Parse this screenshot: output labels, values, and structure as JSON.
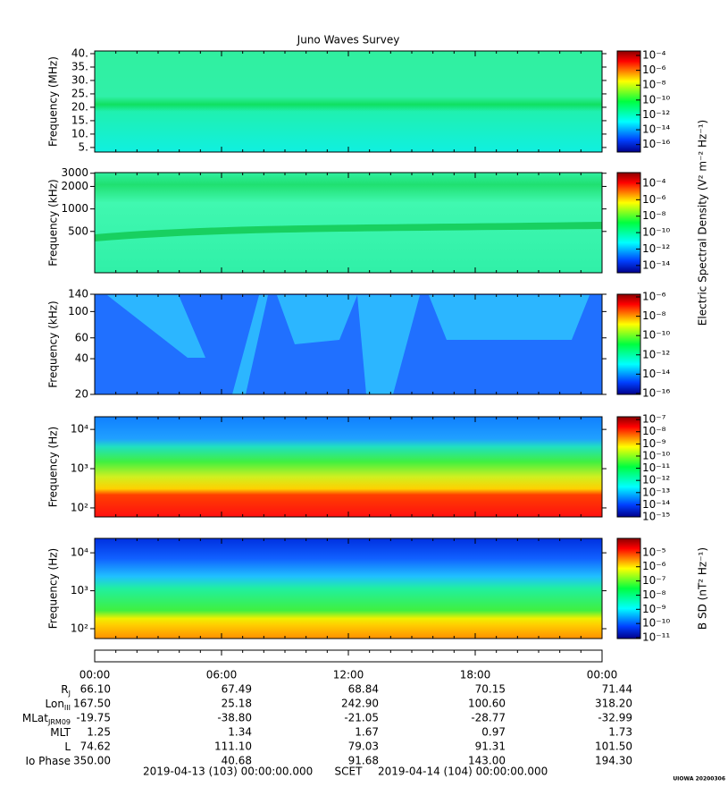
{
  "title": "Juno Waves Survey",
  "chart_data": [
    {
      "type": "spectrogram",
      "ylabel": "Frequency (MHz)",
      "yscale": "linear",
      "ylim": [
        3.3,
        41
      ],
      "yticks": [
        {
          "value": 5,
          "label": "5."
        },
        {
          "value": 10,
          "label": "10."
        },
        {
          "value": 15,
          "label": "15."
        },
        {
          "value": 20,
          "label": "20."
        },
        {
          "value": 25,
          "label": "25."
        },
        {
          "value": 30,
          "label": "30."
        },
        {
          "value": 35,
          "label": "35."
        },
        {
          "value": 40,
          "label": "40."
        }
      ],
      "colorbar": {
        "scale": "log",
        "clim": [
          1e-17,
          0.0004
        ],
        "ticks": [
          {
            "value": 0.0001,
            "label": "10⁻⁴"
          },
          {
            "value": 1e-06,
            "label": "10⁻⁶"
          },
          {
            "value": 1e-08,
            "label": "10⁻⁸"
          },
          {
            "value": 1e-10,
            "label": "10⁻¹⁰"
          },
          {
            "value": 1e-12,
            "label": "10⁻¹²"
          },
          {
            "value": 1e-14,
            "label": "10⁻¹⁴"
          },
          {
            "value": 1e-16,
            "label": "10⁻¹⁶"
          }
        ]
      }
    },
    {
      "type": "spectrogram",
      "ylabel": "Frequency (kHz)",
      "yscale": "log",
      "ylim": [
        140,
        3060
      ],
      "yticks": [
        500,
        1000,
        2000,
        3000
      ],
      "colorbar": {
        "scale": "log",
        "clim": [
          1.3e-15,
          0.002
        ],
        "ticks": [
          {
            "value": 0.0001,
            "label": "10⁻⁴"
          },
          {
            "value": 1e-06,
            "label": "10⁻⁶"
          },
          {
            "value": 1e-08,
            "label": "10⁻⁸"
          },
          {
            "value": 1e-10,
            "label": "10⁻¹⁰"
          },
          {
            "value": 1e-12,
            "label": "10⁻¹²"
          },
          {
            "value": 1e-14,
            "label": "10⁻¹⁴"
          }
        ]
      }
    },
    {
      "type": "spectrogram",
      "ylabel": "Frequency (kHz)",
      "yscale": "log",
      "ylim": [
        20,
        140
      ],
      "yticks": [
        20,
        40,
        60,
        100,
        140
      ],
      "colorbar": {
        "scale": "log",
        "clim": [
          8e-17,
          1.9e-06
        ],
        "ticks": [
          {
            "value": 1e-06,
            "label": "10⁻⁶"
          },
          {
            "value": 1e-08,
            "label": "10⁻⁸"
          },
          {
            "value": 1e-10,
            "label": "10⁻¹⁰"
          },
          {
            "value": 1e-12,
            "label": "10⁻¹²"
          },
          {
            "value": 1e-14,
            "label": "10⁻¹⁴"
          },
          {
            "value": 1e-16,
            "label": "10⁻¹⁶"
          }
        ]
      }
    },
    {
      "type": "spectrogram",
      "ylabel": "Frequency (Hz)",
      "yscale": "log",
      "ylim": [
        59,
        21000
      ],
      "yticks": [
        {
          "value": 100,
          "label": "10²"
        },
        {
          "value": 1000,
          "label": "10³"
        },
        {
          "value": 10000,
          "label": "10⁴"
        }
      ],
      "colorbar": {
        "scale": "log",
        "clim": [
          1e-15,
          1.7e-07
        ],
        "ticks": [
          {
            "value": 1e-07,
            "label": "10⁻⁷"
          },
          {
            "value": 1e-08,
            "label": "10⁻⁸"
          },
          {
            "value": 1e-09,
            "label": "10⁻⁹"
          },
          {
            "value": 1e-10,
            "label": "10⁻¹⁰"
          },
          {
            "value": 1e-11,
            "label": "10⁻¹¹"
          },
          {
            "value": 1e-12,
            "label": "10⁻¹²"
          },
          {
            "value": 1e-13,
            "label": "10⁻¹³"
          },
          {
            "value": 1e-14,
            "label": "10⁻¹⁴"
          },
          {
            "value": 1e-15,
            "label": "10⁻¹⁵"
          }
        ]
      }
    },
    {
      "type": "spectrogram",
      "ylabel": "Frequency (Hz)",
      "yscale": "log",
      "ylim": [
        55,
        24000
      ],
      "yticks": [
        {
          "value": 100,
          "label": "10²"
        },
        {
          "value": 1000,
          "label": "10³"
        },
        {
          "value": 10000,
          "label": "10⁴"
        }
      ],
      "colorbar": {
        "scale": "log",
        "clim": [
          8.7e-12,
          0.0001
        ],
        "label": "B SD (nT² Hz⁻¹)",
        "ticks": [
          {
            "value": 1e-05,
            "label": "10⁻⁵"
          },
          {
            "value": 1e-06,
            "label": "10⁻⁶"
          },
          {
            "value": 1e-07,
            "label": "10⁻⁷"
          },
          {
            "value": 1e-08,
            "label": "10⁻⁸"
          },
          {
            "value": 1e-09,
            "label": "10⁻⁹"
          },
          {
            "value": 1e-10,
            "label": "10⁻¹⁰"
          },
          {
            "value": 1e-11,
            "label": "10⁻¹¹"
          }
        ]
      }
    }
  ],
  "electric_colorbar_label": "Electric Spectral Density (V² m⁻² Hz⁻¹)",
  "time_ticks": [
    "00:00",
    "06:00",
    "12:00",
    "18:00",
    "00:00"
  ],
  "ephemeris": [
    {
      "label": "R",
      "sub": "J",
      "values": [
        "66.10",
        "67.49",
        "68.84",
        "70.15",
        "71.44"
      ]
    },
    {
      "label": "Lon",
      "sub": "III",
      "values": [
        "167.50",
        "25.18",
        "242.90",
        "100.60",
        "318.20"
      ]
    },
    {
      "label": "MLat",
      "sub": "JRM09",
      "values": [
        "-19.75",
        "-38.80",
        "-21.05",
        "-28.77",
        "-32.99"
      ]
    },
    {
      "label": "MLT",
      "values": [
        "1.25",
        "1.34",
        "1.67",
        "0.97",
        "1.73"
      ]
    },
    {
      "label": "L",
      "values": [
        "74.62",
        "111.10",
        "79.03",
        "91.31",
        "101.50"
      ]
    },
    {
      "label": "Io Phase",
      "values": [
        "350.00",
        "40.68",
        "91.68",
        "143.00",
        "194.30"
      ]
    }
  ],
  "footer": {
    "start": "2019-04-13 (103) 00:00:00.000",
    "frame": "SCET",
    "end": "2019-04-14 (104) 00:00:00.000",
    "credit": "UIOWA 20200306"
  }
}
